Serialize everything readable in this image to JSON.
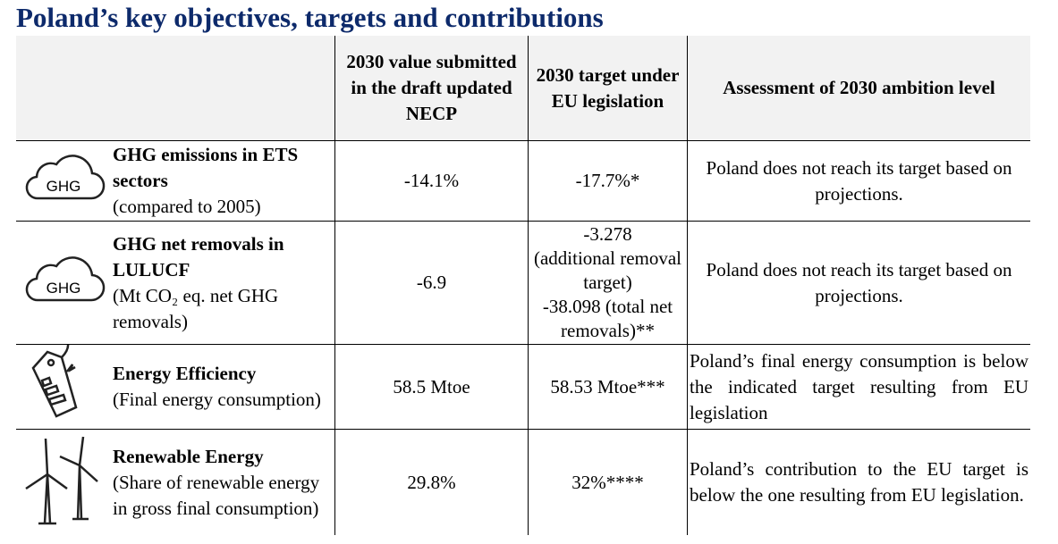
{
  "title": "Poland’s key objectives, targets and contributions",
  "table": {
    "header": [
      "2030 value submitted in the draft updated NECP",
      "2030 target under EU legislation",
      "Assessment of 2030 ambition level"
    ],
    "rows": [
      {
        "icon_label": "GHG",
        "title": "GHG emissions in ETS sectors",
        "subtitle": "(compared to 2005)",
        "value": "-14.1%",
        "target": [
          "-17.7%*"
        ],
        "assessment": "Poland does not reach its target based on projections."
      },
      {
        "icon_label": "GHG",
        "title": "GHG net removals in LULUCF",
        "subtitle": "(Mt CO₂ eq. net GHG removals)",
        "value": "-6.9",
        "target": [
          "-3.278",
          "(additional removal target)",
          "-38.098 (total net removals)**"
        ],
        "assessment": "Poland does not reach its target based on projections."
      },
      {
        "title": "Energy Efficiency",
        "subtitle": "(Final energy consumption)",
        "value": "58.5 Mtoe",
        "target": [
          "58.53 Mtoe***"
        ],
        "assessment": "Poland’s final energy consumption is below the indicated target resulting from EU legislation"
      },
      {
        "title": "Renewable Energy",
        "subtitle": "(Share of renewable energy in gross final consumption)",
        "value": "29.8%",
        "target": [
          "32%****"
        ],
        "assessment": "Poland’s contribution to the EU target is below the one resulting from EU legislation."
      }
    ]
  }
}
